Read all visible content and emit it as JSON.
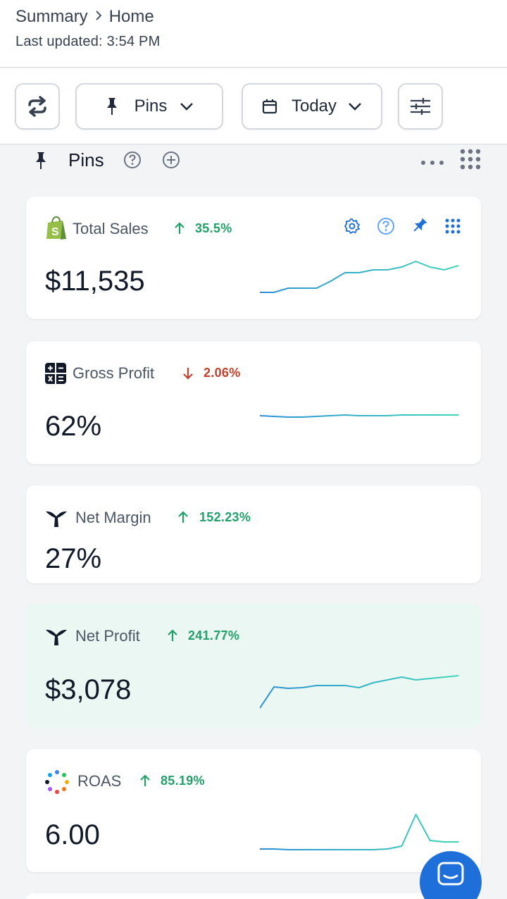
{
  "breadcrumb": {
    "parent": "Summary",
    "current": "Home"
  },
  "last_updated": "Last updated: 3:54 PM",
  "toolbar": {
    "pins_label": "Pins",
    "date_label": "Today"
  },
  "section": {
    "title": "Pins"
  },
  "cards": [
    {
      "title": "Total Sales",
      "change": "35.5%",
      "direction": "up",
      "value": "$11,535",
      "spark": [
        46,
        46,
        40,
        40,
        40,
        30,
        18,
        18,
        14,
        14,
        10,
        2,
        10,
        14,
        8
      ]
    },
    {
      "title": "Gross Profit",
      "change": "2.06%",
      "direction": "down",
      "value": "62%",
      "spark": [
        20,
        21,
        22,
        22,
        21,
        20,
        19,
        20,
        20,
        20,
        19,
        19,
        19,
        19,
        19
      ]
    },
    {
      "title": "Net Margin",
      "change": "152.23%",
      "direction": "up",
      "value": "27%",
      "spark": []
    },
    {
      "title": "Net Profit",
      "change": "241.77%",
      "direction": "up",
      "value": "$3,078",
      "spark": [
        58,
        28,
        30,
        29,
        26,
        26,
        26,
        29,
        22,
        18,
        14,
        18,
        16,
        14,
        12
      ]
    },
    {
      "title": "ROAS",
      "change": "85.19%",
      "direction": "up",
      "value": "6.00",
      "spark": [
        52,
        52,
        53,
        53,
        53,
        53,
        53,
        53,
        53,
        52,
        48,
        3,
        40,
        42,
        42
      ]
    }
  ],
  "colors": {
    "up": "#22a06b",
    "down": "#c2412d",
    "accent": "#1e6fd9",
    "spark_start": "#2b8fd6",
    "spark_end": "#3fd6b5"
  }
}
